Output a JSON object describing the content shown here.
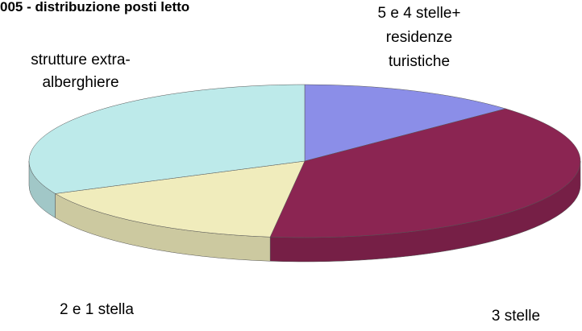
{
  "chart_data": {
    "type": "pie3d",
    "title": "005 - distribuzione posti letto",
    "categories": [
      "5 e 4 stelle+\nresidenze\nturistiche",
      "3 stelle",
      "2 e 1 stella",
      "strutture extra-\nalberghiere"
    ],
    "values": [
      13,
      39,
      16,
      32
    ],
    "colors": [
      "#8b8ee8",
      "#8b2552",
      "#f0ecbc",
      "#bdeaea"
    ]
  }
}
